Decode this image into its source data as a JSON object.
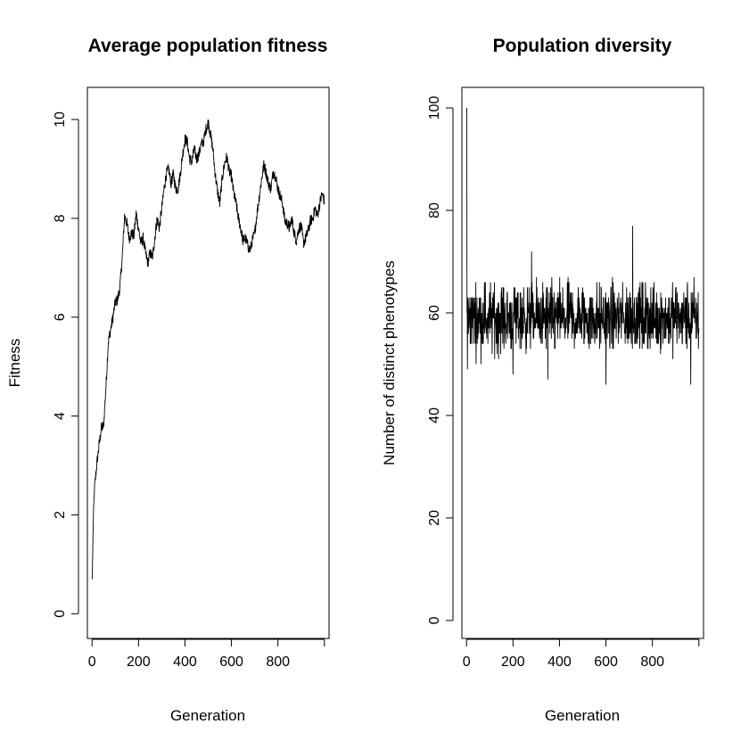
{
  "chart_data": [
    {
      "type": "line",
      "title": "Average population fitness",
      "xlabel": "Generation",
      "ylabel": "Fitness",
      "xlim": [
        -20,
        1020
      ],
      "ylim": [
        -0.5,
        10.65
      ],
      "xticks": [
        0,
        200,
        400,
        600,
        800
      ],
      "yticks": [
        0,
        2,
        4,
        6,
        8,
        10
      ],
      "grid": false,
      "x_range": [
        1,
        1000
      ],
      "series": [
        {
          "line_color": "#000000",
          "points": [
            [
              1,
              0.7
            ],
            [
              5,
              1.8
            ],
            [
              10,
              2.5
            ],
            [
              20,
              3.0
            ],
            [
              30,
              3.4
            ],
            [
              40,
              3.75
            ],
            [
              50,
              3.8
            ],
            [
              60,
              4.6
            ],
            [
              70,
              5.5
            ],
            [
              80,
              5.75
            ],
            [
              90,
              6.0
            ],
            [
              100,
              6.3
            ],
            [
              110,
              6.35
            ],
            [
              120,
              6.6
            ],
            [
              130,
              7.2
            ],
            [
              140,
              8.05
            ],
            [
              150,
              7.9
            ],
            [
              160,
              7.6
            ],
            [
              170,
              7.7
            ],
            [
              180,
              7.65
            ],
            [
              190,
              8.1
            ],
            [
              200,
              7.8
            ],
            [
              210,
              7.5
            ],
            [
              220,
              7.6
            ],
            [
              230,
              7.3
            ],
            [
              240,
              7.1
            ],
            [
              250,
              7.3
            ],
            [
              260,
              7.2
            ],
            [
              270,
              7.6
            ],
            [
              280,
              8.0
            ],
            [
              290,
              7.8
            ],
            [
              300,
              8.2
            ],
            [
              310,
              8.6
            ],
            [
              320,
              8.9
            ],
            [
              330,
              9.0
            ],
            [
              340,
              8.7
            ],
            [
              350,
              8.9
            ],
            [
              360,
              8.6
            ],
            [
              370,
              8.6
            ],
            [
              380,
              8.9
            ],
            [
              390,
              9.3
            ],
            [
              400,
              9.6
            ],
            [
              410,
              9.55
            ],
            [
              420,
              9.2
            ],
            [
              430,
              9.15
            ],
            [
              440,
              9.4
            ],
            [
              450,
              9.2
            ],
            [
              460,
              9.3
            ],
            [
              470,
              9.5
            ],
            [
              480,
              9.55
            ],
            [
              490,
              9.8
            ],
            [
              500,
              9.95
            ],
            [
              510,
              9.7
            ],
            [
              520,
              9.4
            ],
            [
              530,
              8.9
            ],
            [
              540,
              8.55
            ],
            [
              550,
              8.3
            ],
            [
              560,
              8.8
            ],
            [
              570,
              9.1
            ],
            [
              580,
              9.25
            ],
            [
              590,
              8.95
            ],
            [
              600,
              8.85
            ],
            [
              610,
              8.5
            ],
            [
              620,
              8.3
            ],
            [
              630,
              8.0
            ],
            [
              640,
              7.8
            ],
            [
              650,
              7.55
            ],
            [
              660,
              7.6
            ],
            [
              670,
              7.45
            ],
            [
              680,
              7.35
            ],
            [
              690,
              7.55
            ],
            [
              700,
              7.7
            ],
            [
              710,
              8.1
            ],
            [
              720,
              8.45
            ],
            [
              730,
              8.8
            ],
            [
              740,
              9.1
            ],
            [
              750,
              8.9
            ],
            [
              760,
              8.7
            ],
            [
              770,
              8.6
            ],
            [
              780,
              8.95
            ],
            [
              790,
              8.85
            ],
            [
              800,
              8.6
            ],
            [
              810,
              8.45
            ],
            [
              820,
              8.3
            ],
            [
              830,
              7.95
            ],
            [
              840,
              7.9
            ],
            [
              850,
              7.8
            ],
            [
              860,
              8.0
            ],
            [
              870,
              7.7
            ],
            [
              880,
              7.55
            ],
            [
              890,
              7.8
            ],
            [
              900,
              7.85
            ],
            [
              910,
              7.5
            ],
            [
              920,
              7.6
            ],
            [
              930,
              7.75
            ],
            [
              940,
              7.95
            ],
            [
              950,
              8.0
            ],
            [
              960,
              8.2
            ],
            [
              970,
              8.05
            ],
            [
              980,
              8.3
            ],
            [
              990,
              8.5
            ],
            [
              1000,
              8.35
            ]
          ],
          "noise_amplitude": 0.12
        }
      ]
    },
    {
      "type": "line",
      "title": "Population diversity",
      "xlabel": "Generation",
      "ylabel": "Number of distinct phenotypes",
      "xlim": [
        -20,
        1020
      ],
      "ylim": [
        -3.5,
        104
      ],
      "xticks": [
        0,
        200,
        400,
        600,
        800
      ],
      "yticks": [
        0,
        20,
        40,
        60,
        80,
        100
      ],
      "grid": false,
      "x_range": [
        1,
        1000
      ],
      "series": [
        {
          "line_color": "#000000",
          "initial_value": 100,
          "mean": 59,
          "typical_range": [
            50,
            68
          ],
          "observed_min": 46,
          "observed_max": 77,
          "spikes": [
            [
              4,
              49
            ],
            [
              200,
              48
            ],
            [
              280,
              72
            ],
            [
              350,
              47
            ],
            [
              600,
              46
            ],
            [
              715,
              77
            ],
            [
              965,
              46
            ]
          ]
        }
      ]
    }
  ]
}
